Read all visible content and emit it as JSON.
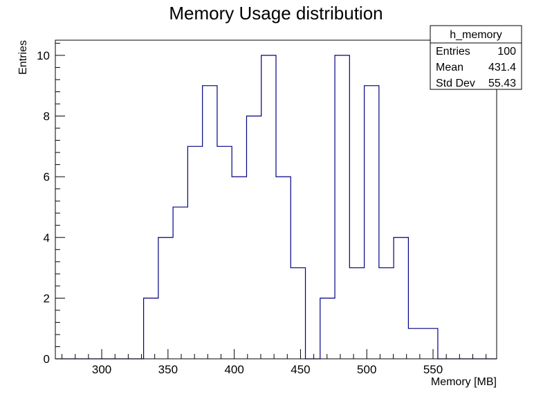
{
  "chart_data": {
    "type": "bar",
    "title": "Memory Usage distribution",
    "xlabel": "Memory [MB]",
    "ylabel": "Entries",
    "xlim": [
      265,
      598
    ],
    "ylim": [
      0,
      10.5
    ],
    "bin_width": 11.1,
    "bins_start": 265,
    "values": [
      0,
      0,
      0,
      0,
      0,
      0,
      2,
      4,
      5,
      7,
      9,
      7,
      6,
      8,
      10,
      6,
      3,
      0,
      2,
      10,
      3,
      9,
      3,
      4,
      1,
      1,
      0,
      0,
      0,
      0
    ],
    "x_ticks": [
      300,
      350,
      400,
      450,
      500,
      550
    ],
    "x_tick_labels": [
      "300",
      "350",
      "400",
      "450",
      "500",
      "550"
    ],
    "y_ticks": [
      0,
      2,
      4,
      6,
      8,
      10
    ],
    "y_tick_labels": [
      "0",
      "2",
      "4",
      "6",
      "8",
      "10"
    ],
    "grid": false,
    "line_color": "#000080",
    "legend": {
      "placement": "top-right",
      "name": "h_memory",
      "rows": [
        {
          "label": "Entries",
          "value": "100"
        },
        {
          "label": "Mean",
          "value": "431.4"
        },
        {
          "label": "Std Dev",
          "value": "55.43"
        }
      ]
    }
  }
}
